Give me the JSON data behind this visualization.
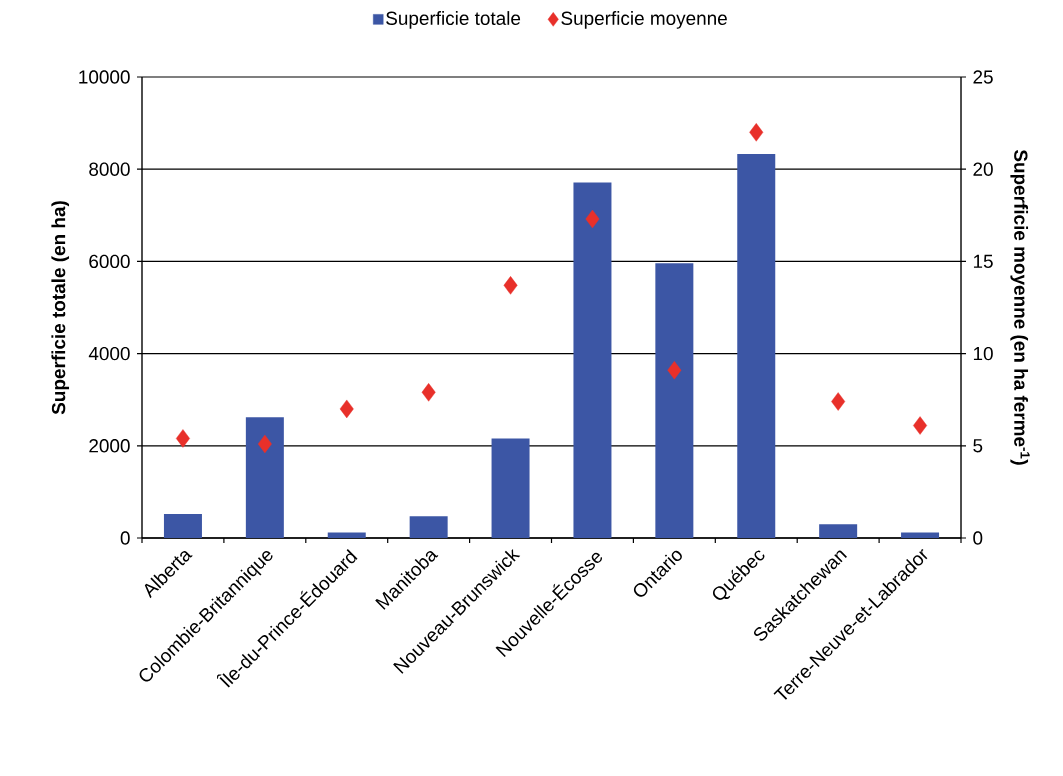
{
  "chart_data": {
    "type": "bar",
    "categories": [
      "Alberta",
      "Colombie-Britannique",
      "Île-du-Prince-Édouard",
      "Manitoba",
      "Nouveau-Brunswick",
      "Nouvelle-Écosse",
      "Ontario",
      "Québec",
      "Saskatchewan",
      "Terre-Neuve-et-Labrador"
    ],
    "series": [
      {
        "name": "Superficie totale",
        "color": "#3c56a5",
        "values": [
          520,
          2620,
          120,
          470,
          2160,
          7710,
          5960,
          8330,
          300,
          120
        ]
      },
      {
        "name": "Superficie moyenne",
        "type": "scatter",
        "axis": "y2",
        "marker": "diamond",
        "color": "#e8302a",
        "values": [
          5.4,
          5.1,
          7.0,
          7.9,
          13.7,
          17.3,
          9.1,
          22.0,
          7.4,
          6.1
        ]
      }
    ],
    "ylabel": "Superficie totale (en ha)",
    "y2label": "Superficie moyenne (en ha ferme$^{-1}$)",
    "ylim": [
      0,
      10000
    ],
    "yticks": [
      0,
      2000,
      4000,
      6000,
      8000,
      10000
    ],
    "y2lim": [
      0,
      25
    ],
    "y2ticks": [
      0,
      5,
      10,
      15,
      20,
      25
    ],
    "grid": "y",
    "legend": "top"
  }
}
